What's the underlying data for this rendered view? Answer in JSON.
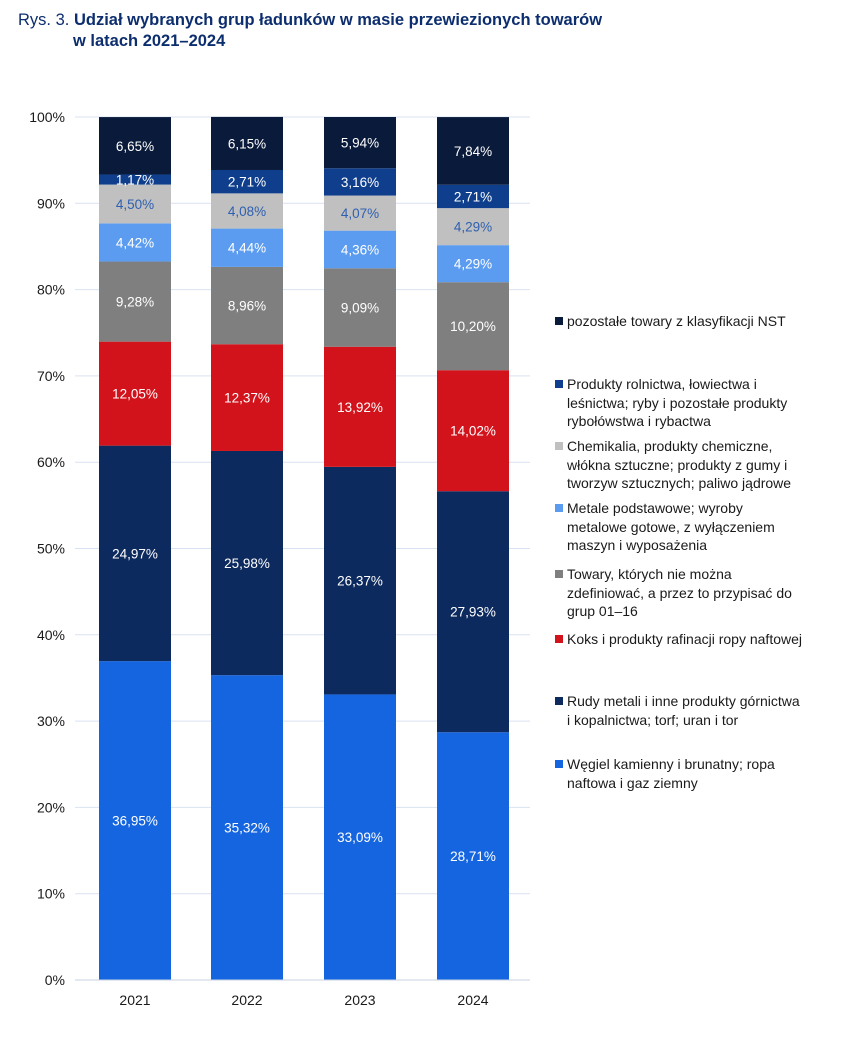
{
  "title": {
    "prefix": "Rys. 3.",
    "line1": "Udział wybranych grup ładunków w masie przewiezionych towarów",
    "line2": "w latach 2021–2024"
  },
  "chart_data": {
    "type": "bar",
    "stacked": true,
    "categories": [
      "2021",
      "2022",
      "2023",
      "2024"
    ],
    "y_ticks": [
      "0%",
      "10%",
      "20%",
      "30%",
      "40%",
      "50%",
      "60%",
      "70%",
      "80%",
      "90%",
      "100%"
    ],
    "ylim": [
      0,
      100
    ],
    "grid": true,
    "legend_position": "right",
    "series": [
      {
        "name": "Węgiel kamienny i brunatny; ropa naftowa i gaz ziemny",
        "color": "#1565e0",
        "label_color": "#ffffff",
        "values": [
          36.95,
          35.32,
          33.09,
          28.71
        ],
        "labels": [
          "36,95%",
          "35,32%",
          "33,09%",
          "28,71%"
        ]
      },
      {
        "name": "Rudy metali i inne produkty górnictwa i kopalnictwa; torf; uran i tor",
        "color": "#0d2a5e",
        "label_color": "#ffffff",
        "values": [
          24.97,
          25.98,
          26.37,
          27.93
        ],
        "labels": [
          "24,97%",
          "25,98%",
          "26,37%",
          "27,93%"
        ]
      },
      {
        "name": "Koks i produkty rafinacji ropy naftowej",
        "color": "#d3131b",
        "label_color": "#ffffff",
        "values": [
          12.05,
          12.37,
          13.92,
          14.02
        ],
        "labels": [
          "12,05%",
          "12,37%",
          "13,92%",
          "14,02%"
        ]
      },
      {
        "name": "Towary, których nie można zdefiniować, a przez to przypisać do grup 01–16",
        "color": "#7f7f7f",
        "label_color": "#ffffff",
        "values": [
          9.28,
          8.96,
          9.09,
          10.2
        ],
        "labels": [
          "9,28%",
          "8,96%",
          "9,09%",
          "10,20%"
        ]
      },
      {
        "name": "Metale podstawowe; wyroby metalowe gotowe, z wyłączeniem maszyn i wyposażenia",
        "color": "#5b9cf0",
        "label_color": "#ffffff",
        "values": [
          4.42,
          4.44,
          4.36,
          4.29
        ],
        "labels": [
          "4,42%",
          "4,44%",
          "4,36%",
          "4,29%"
        ]
      },
      {
        "name": "Chemikalia, produkty chemiczne, włókna sztuczne; produkty z gumy i tworzyw sztucznych; paliwo jądrowe",
        "color": "#c0c0c0",
        "label_color": "#2e5fb0",
        "values": [
          4.5,
          4.08,
          4.07,
          4.29
        ],
        "labels": [
          "4,50%",
          "4,08%",
          "4,07%",
          "4,29%"
        ]
      },
      {
        "name": "Produkty rolnictwa, łowiectwa i leśnictwa; ryby i pozostałe produkty rybołówstwa i rybactwa",
        "color": "#0f3f8c",
        "label_color": "#ffffff",
        "values": [
          1.17,
          2.71,
          3.16,
          2.71
        ],
        "labels": [
          "1,17%",
          "2,71%",
          "3,16%",
          "2,71%"
        ]
      },
      {
        "name": "pozostałe towary z klasyfikacji NST",
        "color": "#0a1a3a",
        "label_color": "#ffffff",
        "values": [
          6.65,
          6.15,
          5.94,
          7.84
        ],
        "labels": [
          "6,65%",
          "6,15%",
          "5,94%",
          "7,84%"
        ]
      }
    ]
  },
  "legend": {
    "items": [
      {
        "lines": [
          "pozostałe towary z klasyfikacji NST"
        ],
        "color": "#0a1a3a"
      },
      {
        "lines": [
          "Produkty rolnictwa, łowiectwa i",
          "leśnictwa; ryby i pozostałe produkty",
          "rybołówstwa i rybactwa"
        ],
        "color": "#0f3f8c"
      },
      {
        "lines": [
          "Chemikalia, produkty chemiczne,",
          "włókna sztuczne; produkty z gumy i",
          "tworzyw sztucznych; paliwo jądrowe"
        ],
        "color": "#c0c0c0"
      },
      {
        "lines": [
          "Metale podstawowe; wyroby",
          "metalowe gotowe, z wyłączeniem",
          "maszyn i wyposażenia"
        ],
        "color": "#5b9cf0"
      },
      {
        "lines": [
          "Towary, których nie można",
          "zdefiniować, a przez to przypisać do",
          "grup 01–16"
        ],
        "color": "#7f7f7f"
      },
      {
        "lines": [
          "Koks i produkty rafinacji ropy naftowej"
        ],
        "color": "#d3131b"
      },
      {
        "lines": [
          "Rudy metali i inne produkty górnictwa",
          "i kopalnictwa; torf; uran i tor"
        ],
        "color": "#0d2a5e"
      },
      {
        "lines": [
          "Węgiel kamienny i brunatny; ropa",
          "naftowa i gaz ziemny"
        ],
        "color": "#1565e0"
      }
    ]
  }
}
